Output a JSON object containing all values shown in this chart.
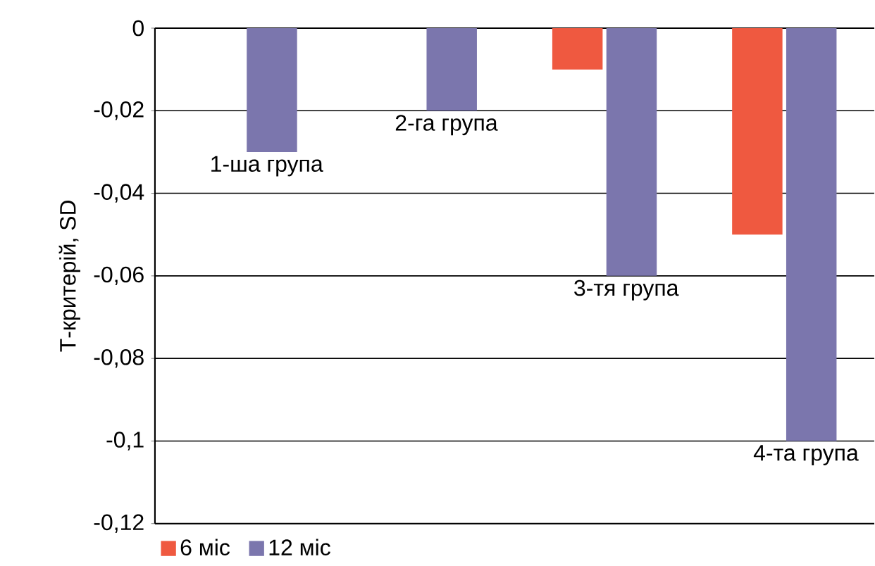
{
  "chart_data": {
    "type": "bar",
    "ylabel": "Т-критерій, SD",
    "categories": [
      "1-ша група",
      "2-га група",
      "3-тя група",
      "4-та група"
    ],
    "series": [
      {
        "name": "6 міс",
        "color": "#ef5940",
        "values": [
          null,
          null,
          -0.01,
          -0.05
        ]
      },
      {
        "name": "12 міс",
        "color": "#7b76ad",
        "values": [
          -0.03,
          -0.02,
          -0.06,
          -0.1
        ]
      }
    ],
    "ylim": [
      -0.12,
      0
    ],
    "yticks": [
      {
        "value": -0.12,
        "label": "-0,12"
      },
      {
        "value": -0.1,
        "label": "-0,1"
      },
      {
        "value": -0.08,
        "label": "-0,08"
      },
      {
        "value": -0.06,
        "label": "-0,06"
      },
      {
        "value": -0.04,
        "label": "-0,04"
      },
      {
        "value": -0.02,
        "label": "-0,02"
      },
      {
        "value": 0,
        "label": "0"
      }
    ],
    "grid": "y",
    "legend": "bottom left"
  }
}
